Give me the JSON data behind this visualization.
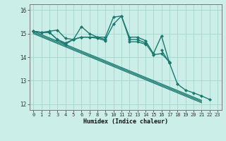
{
  "xlabel": "Humidex (Indice chaleur)",
  "x_values": [
    0,
    1,
    2,
    3,
    4,
    5,
    6,
    7,
    8,
    9,
    10,
    11,
    12,
    13,
    14,
    15,
    16,
    17,
    18,
    19,
    20,
    21,
    22,
    23
  ],
  "line1_y": [
    15.1,
    15.05,
    15.1,
    15.15,
    14.8,
    14.75,
    15.3,
    15.0,
    14.85,
    14.85,
    15.7,
    15.75,
    14.85,
    14.85,
    14.7,
    14.15,
    14.9,
    13.75,
    null,
    null,
    null,
    null,
    null,
    null
  ],
  "line2_y": [
    15.1,
    15.05,
    15.05,
    14.75,
    14.6,
    14.75,
    14.85,
    14.85,
    14.85,
    14.75,
    15.4,
    15.75,
    14.75,
    14.75,
    14.6,
    14.1,
    14.15,
    13.8,
    null,
    null,
    null,
    null,
    null,
    null
  ],
  "line3_y": [
    15.1,
    15.05,
    15.05,
    14.75,
    14.55,
    14.75,
    14.85,
    14.85,
    14.8,
    14.7,
    null,
    null,
    14.65,
    14.65,
    14.55,
    null,
    14.3,
    13.75,
    12.85,
    12.6,
    12.48,
    12.35,
    12.2,
    null
  ],
  "trend1_y": [
    15.1,
    14.96,
    14.82,
    14.68,
    14.54,
    14.4,
    14.26,
    14.12,
    13.98,
    13.84,
    13.7,
    13.56,
    13.42,
    13.28,
    13.14,
    13.0,
    12.86,
    12.72,
    12.58,
    12.44,
    12.3,
    12.16,
    null,
    null
  ],
  "trend2_y": [
    15.05,
    14.91,
    14.77,
    14.63,
    14.49,
    14.35,
    14.21,
    14.07,
    13.93,
    13.79,
    13.65,
    13.51,
    13.37,
    13.23,
    13.09,
    12.95,
    12.81,
    12.67,
    12.53,
    12.39,
    12.25,
    12.11,
    null,
    null
  ],
  "trend3_y": [
    15.0,
    14.86,
    14.72,
    14.58,
    14.44,
    14.3,
    14.16,
    14.02,
    13.88,
    13.74,
    13.6,
    13.46,
    13.32,
    13.18,
    13.04,
    12.9,
    12.76,
    12.62,
    12.48,
    12.34,
    12.2,
    12.06,
    null,
    null
  ],
  "bg_color": "#cceee8",
  "grid_color": "#aad8d0",
  "line_color": "#1a7a70",
  "ylim": [
    11.75,
    16.25
  ],
  "xlim": [
    -0.5,
    23.5
  ],
  "yticks": [
    12,
    13,
    14,
    15,
    16
  ],
  "xticks": [
    0,
    1,
    2,
    3,
    4,
    5,
    6,
    7,
    8,
    9,
    10,
    11,
    12,
    13,
    14,
    15,
    16,
    17,
    18,
    19,
    20,
    21,
    22,
    23
  ]
}
